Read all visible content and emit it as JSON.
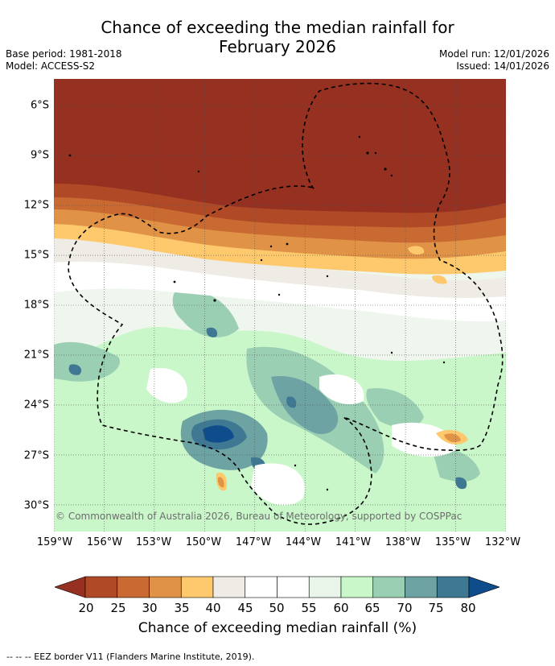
{
  "title": {
    "line1": "Chance of exceeding the median rainfall for",
    "line2": "February 2026"
  },
  "meta": {
    "base_period": "Base period: 1981-2018",
    "model": "Model: ACCESS-S2",
    "model_run": "Model run: 12/01/2026",
    "issued": "Issued: 14/01/2026"
  },
  "map": {
    "lat_labels": [
      "6°S",
      "9°S",
      "12°S",
      "15°S",
      "18°S",
      "21°S",
      "24°S",
      "27°S",
      "30°S"
    ],
    "lat_values": [
      6,
      9,
      12,
      15,
      18,
      21,
      24,
      27,
      30
    ],
    "lat_range": [
      4.4,
      31.6
    ],
    "lon_labels": [
      "159°W",
      "156°W",
      "153°W",
      "150°W",
      "147°W",
      "144°W",
      "141°W",
      "138°W",
      "135°W",
      "132°W"
    ],
    "lon_values": [
      159,
      156,
      153,
      150,
      147,
      144,
      141,
      138,
      135,
      132
    ],
    "lon_range": [
      159,
      132
    ],
    "copyright": "© Commonwealth of Australia 2026, Bureau of Meteorology, supported by COSPPac"
  },
  "colorbar": {
    "ticks": [
      "20",
      "25",
      "30",
      "35",
      "40",
      "45",
      "50",
      "55",
      "60",
      "65",
      "70",
      "75",
      "80"
    ],
    "colors": [
      "#963122",
      "#b04a26",
      "#c96a33",
      "#e09347",
      "#fdc96c",
      "#efece5",
      "#ffffff",
      "#ffffff",
      "#e9f5e9",
      "#c9f7c9",
      "#9bcfb3",
      "#6ea3a3",
      "#3f7893",
      "#0e4c8c"
    ],
    "label": "Chance of exceeding median rainfall (%)"
  },
  "legend": {
    "text": "--  --  -- EEZ border V11 (Flanders Marine Institute, 2019)."
  }
}
